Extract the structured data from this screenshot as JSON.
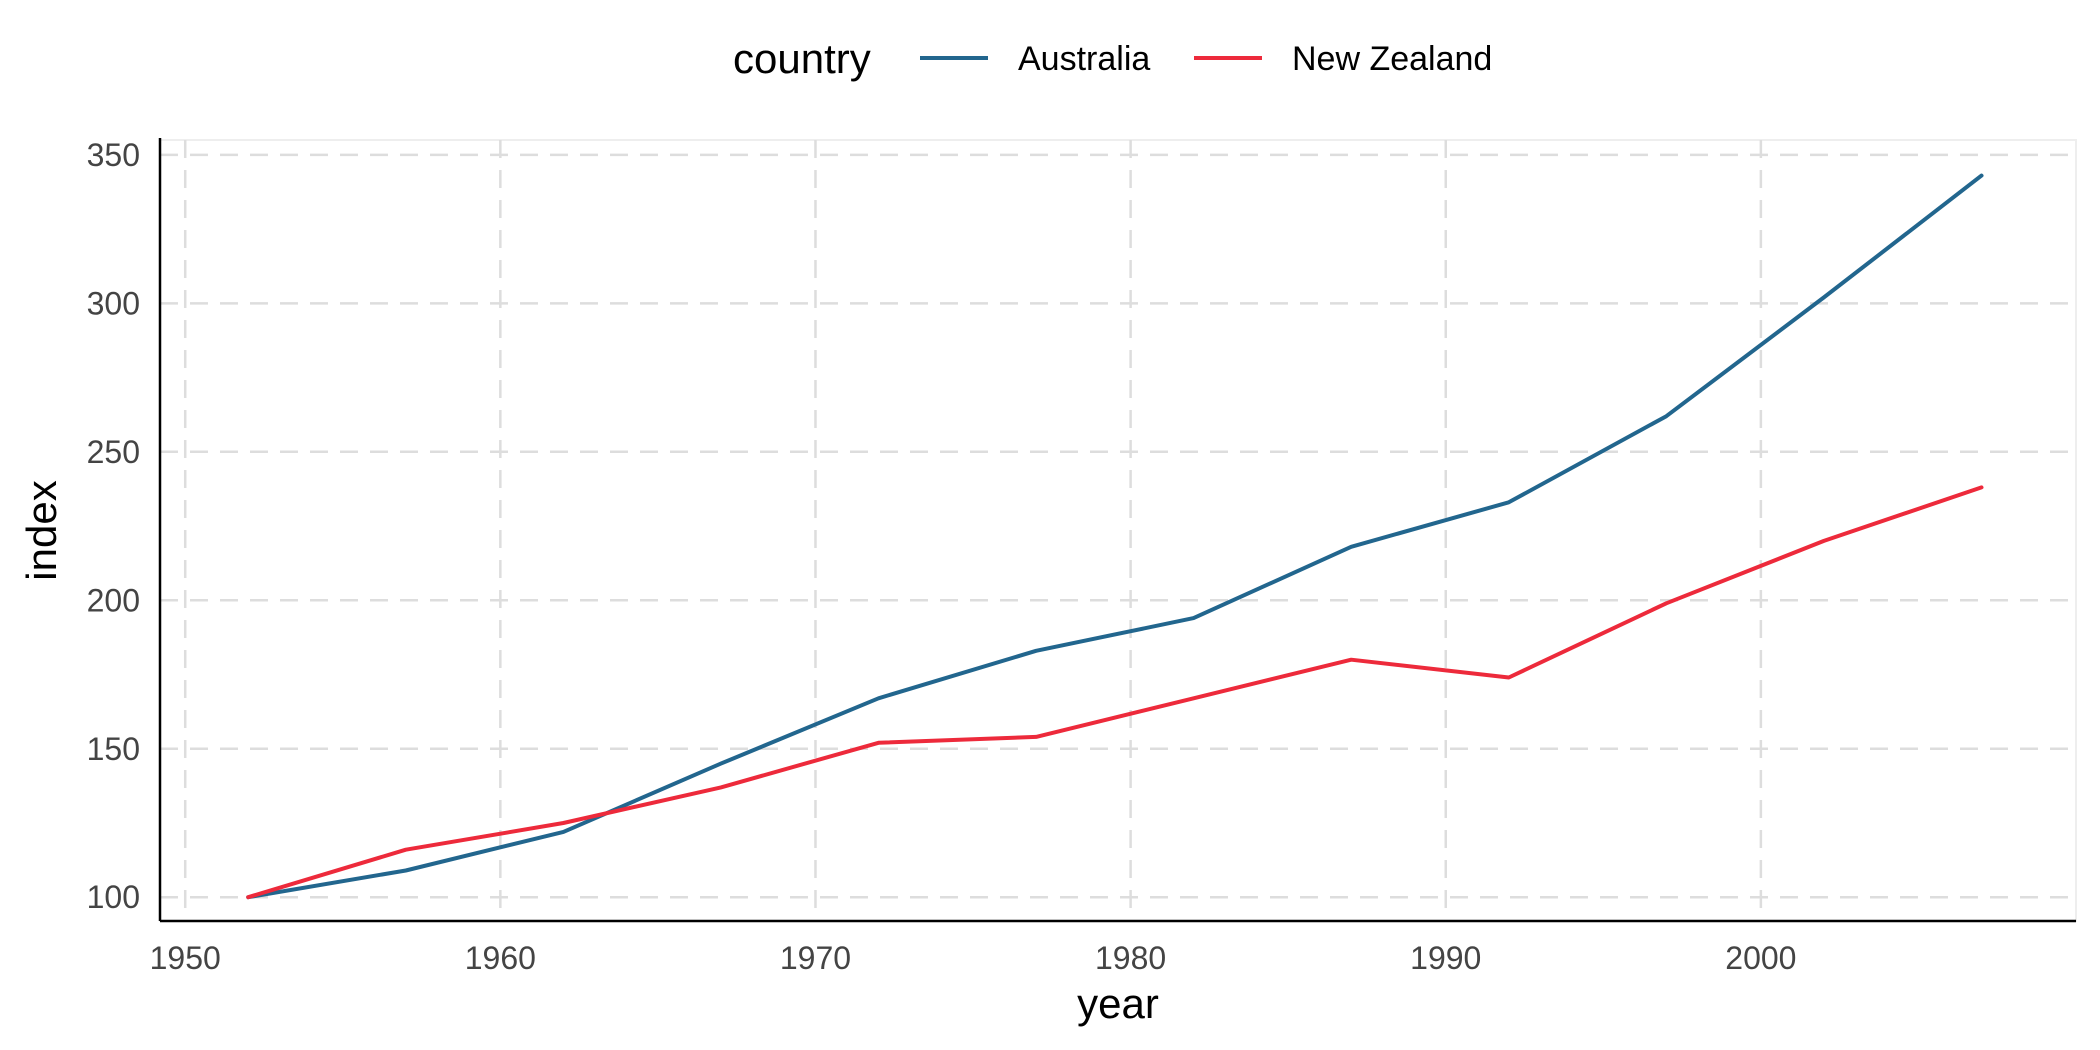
{
  "chart_data": {
    "type": "line",
    "xlabel": "year",
    "ylabel": "index",
    "xlim": [
      1949.2,
      2010
    ],
    "ylim": [
      92,
      355
    ],
    "x_ticks": [
      1950,
      1960,
      1970,
      1980,
      1990,
      2000
    ],
    "y_ticks": [
      100,
      150,
      200,
      250,
      300,
      350
    ],
    "grid": true,
    "legend": {
      "title": "country",
      "position": "top"
    },
    "series": [
      {
        "name": "Australia",
        "color": "#22668e",
        "x": [
          1952,
          1957,
          1962,
          1967,
          1972,
          1977,
          1982,
          1987,
          1992,
          1997,
          2002,
          2007
        ],
        "y": [
          100,
          109,
          122,
          145,
          167,
          183,
          194,
          218,
          233,
          262,
          302,
          343
        ]
      },
      {
        "name": "New Zealand",
        "color": "#ed2a3b",
        "x": [
          1952,
          1957,
          1962,
          1967,
          1972,
          1977,
          1982,
          1987,
          1992,
          1997,
          2002,
          2007
        ],
        "y": [
          100,
          116,
          125,
          137,
          152,
          154,
          167,
          180,
          174,
          199,
          220,
          238
        ]
      }
    ]
  }
}
